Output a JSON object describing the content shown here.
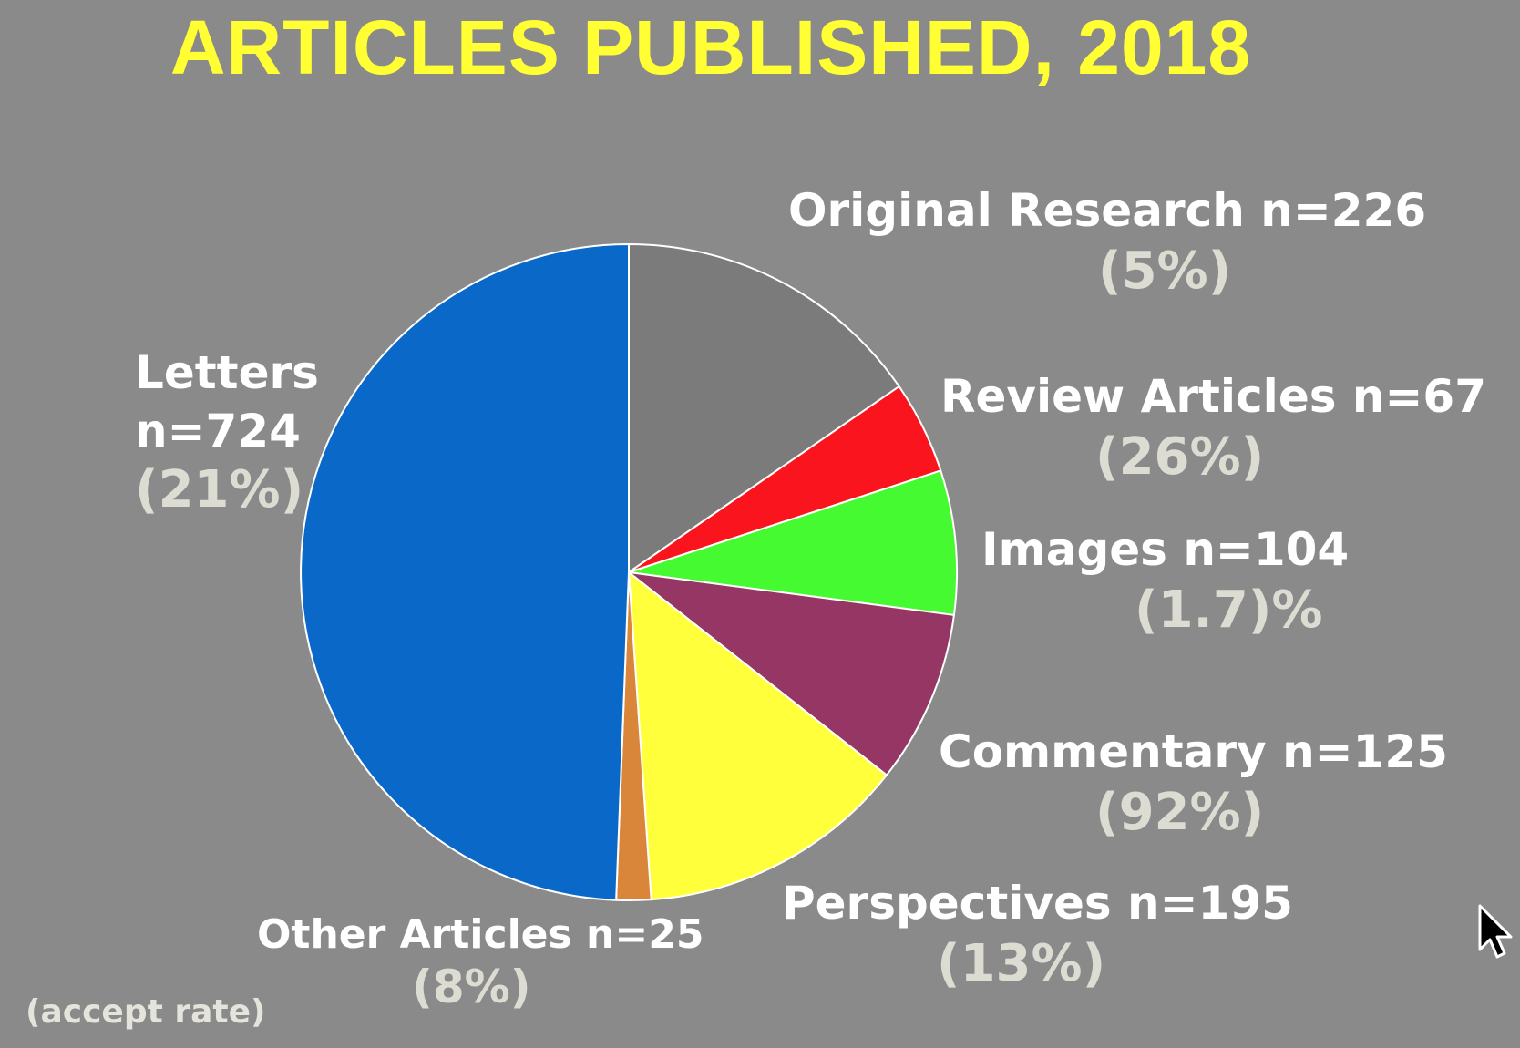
{
  "chart_data": {
    "type": "pie",
    "title": "ARTICLES PUBLISHED, 2018",
    "footnote": "(accept rate)",
    "slices": [
      {
        "name": "Original  Research",
        "count_label": "n=226",
        "value": 226,
        "rate": "(5%)",
        "color": "#7b7b7b"
      },
      {
        "name": "Review Articles",
        "count_label": "n=67",
        "value": 67,
        "rate": "(26%)",
        "color": "#fa141e"
      },
      {
        "name": "Images",
        "count_label": "n=104",
        "value": 104,
        "rate": "(1.7)%",
        "color": "#46fa32"
      },
      {
        "name": "Commentary",
        "count_label": "n=125",
        "value": 125,
        "rate": "(92%)",
        "color": "#963664"
      },
      {
        "name": "Perspectives",
        "count_label": "n=195",
        "value": 195,
        "rate": "(13%)",
        "color": "#ffff3c"
      },
      {
        "name": "Other Articles",
        "count_label": "n=25",
        "value": 25,
        "rate": "(8%)",
        "color": "#d9863a"
      },
      {
        "name": "Letters",
        "count_label": "n=724",
        "value": 724,
        "rate": "(21%)",
        "color": "#0a69c8"
      }
    ]
  },
  "colors": {
    "background": "#8a8a8a",
    "title": "#ffff33",
    "label": "#ffffff",
    "rate": "#dcdcd2",
    "slice_border": "#ffffff"
  },
  "icons": {
    "cursor": "mouse-pointer-icon"
  }
}
